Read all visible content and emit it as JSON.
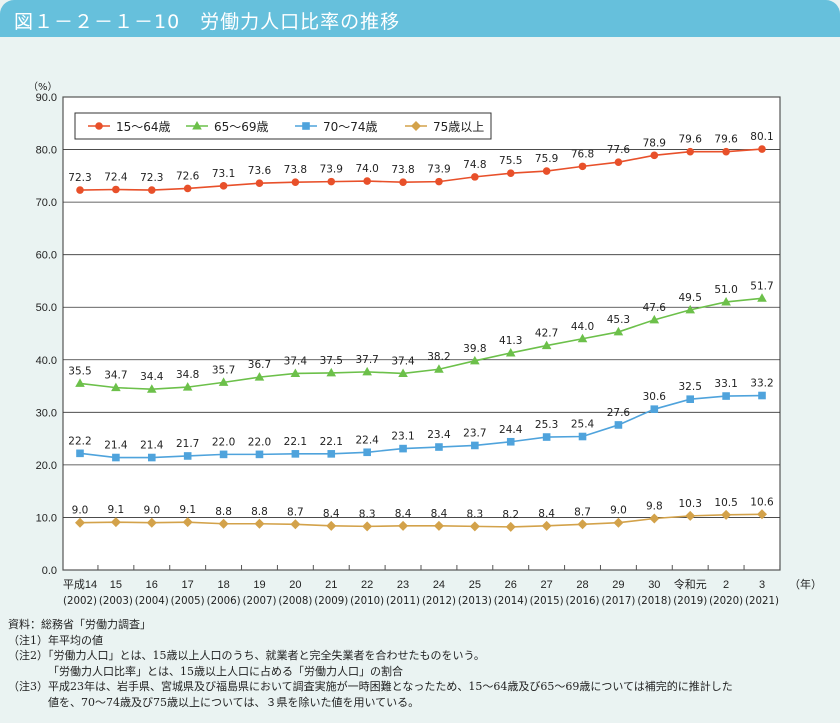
{
  "header": {
    "title": "図１－２－１－10　労働力人口比率の推移"
  },
  "chart_data": {
    "type": "line",
    "title": "",
    "ylabel": "（%）",
    "xunit": "（年）",
    "ylim": [
      0,
      90
    ],
    "yticks": [
      "0.0",
      "10.0",
      "20.0",
      "30.0",
      "40.0",
      "50.0",
      "60.0",
      "70.0",
      "80.0",
      "90.0"
    ],
    "grid": true,
    "legend": "top-left",
    "categories": [
      {
        "era": "平成14",
        "year": "(2002)"
      },
      {
        "era": "15",
        "year": "(2003)"
      },
      {
        "era": "16",
        "year": "(2004)"
      },
      {
        "era": "17",
        "year": "(2005)"
      },
      {
        "era": "18",
        "year": "(2006)"
      },
      {
        "era": "19",
        "year": "(2007)"
      },
      {
        "era": "20",
        "year": "(2008)"
      },
      {
        "era": "21",
        "year": "(2009)"
      },
      {
        "era": "22",
        "year": "(2010)"
      },
      {
        "era": "23",
        "year": "(2011)"
      },
      {
        "era": "24",
        "year": "(2012)"
      },
      {
        "era": "25",
        "year": "(2013)"
      },
      {
        "era": "26",
        "year": "(2014)"
      },
      {
        "era": "27",
        "year": "(2015)"
      },
      {
        "era": "28",
        "year": "(2016)"
      },
      {
        "era": "29",
        "year": "(2017)"
      },
      {
        "era": "30",
        "year": "(2018)"
      },
      {
        "era": "令和元",
        "year": "(2019)"
      },
      {
        "era": "2",
        "year": "(2020)"
      },
      {
        "era": "3",
        "year": "(2021)"
      }
    ],
    "series": [
      {
        "name": "15～64歳",
        "color": "#e8502a",
        "marker": "circle",
        "values": [
          72.3,
          72.4,
          72.3,
          72.6,
          73.1,
          73.6,
          73.8,
          73.9,
          74.0,
          73.8,
          73.9,
          74.8,
          75.5,
          75.9,
          76.8,
          77.6,
          78.9,
          79.6,
          79.6,
          80.1
        ]
      },
      {
        "name": "65～69歳",
        "color": "#6cc04a",
        "marker": "triangle",
        "values": [
          35.5,
          34.7,
          34.4,
          34.8,
          35.7,
          36.7,
          37.4,
          37.5,
          37.7,
          37.4,
          38.2,
          39.8,
          41.3,
          42.7,
          44.0,
          45.3,
          47.6,
          49.5,
          51.0,
          51.7
        ]
      },
      {
        "name": "70～74歳",
        "color": "#4fa3dc",
        "marker": "square",
        "values": [
          22.2,
          21.4,
          21.4,
          21.7,
          22.0,
          22.0,
          22.1,
          22.1,
          22.4,
          23.1,
          23.4,
          23.7,
          24.4,
          25.3,
          25.4,
          27.6,
          30.6,
          32.5,
          33.1,
          33.2
        ]
      },
      {
        "name": "75歳以上",
        "color": "#d3a24a",
        "marker": "diamond",
        "values": [
          9.0,
          9.1,
          9.0,
          9.1,
          8.8,
          8.8,
          8.7,
          8.4,
          8.3,
          8.4,
          8.4,
          8.3,
          8.2,
          8.4,
          8.7,
          9.0,
          9.8,
          10.3,
          10.5,
          10.6
        ]
      }
    ]
  },
  "notes": {
    "source": "資料：総務省「労働力調査」",
    "note1": "（注1）年平均の値",
    "note2a": "（注2）「労働力人口」とは、15歳以上人口のうち、就業者と完全失業者を合わせたものをいう。",
    "note2b": "「労働力人口比率」とは、15歳以上人口に占める「労働力人口」の割合",
    "note3a": "（注3）平成23年は、岩手県、宮城県及び福島県において調査実施が一時困難となったため、15～64歳及び65～69歳については補完的に推計した",
    "note3b": "値を、70～74歳及び75歳以上については、３県を除いた値を用いている。"
  }
}
